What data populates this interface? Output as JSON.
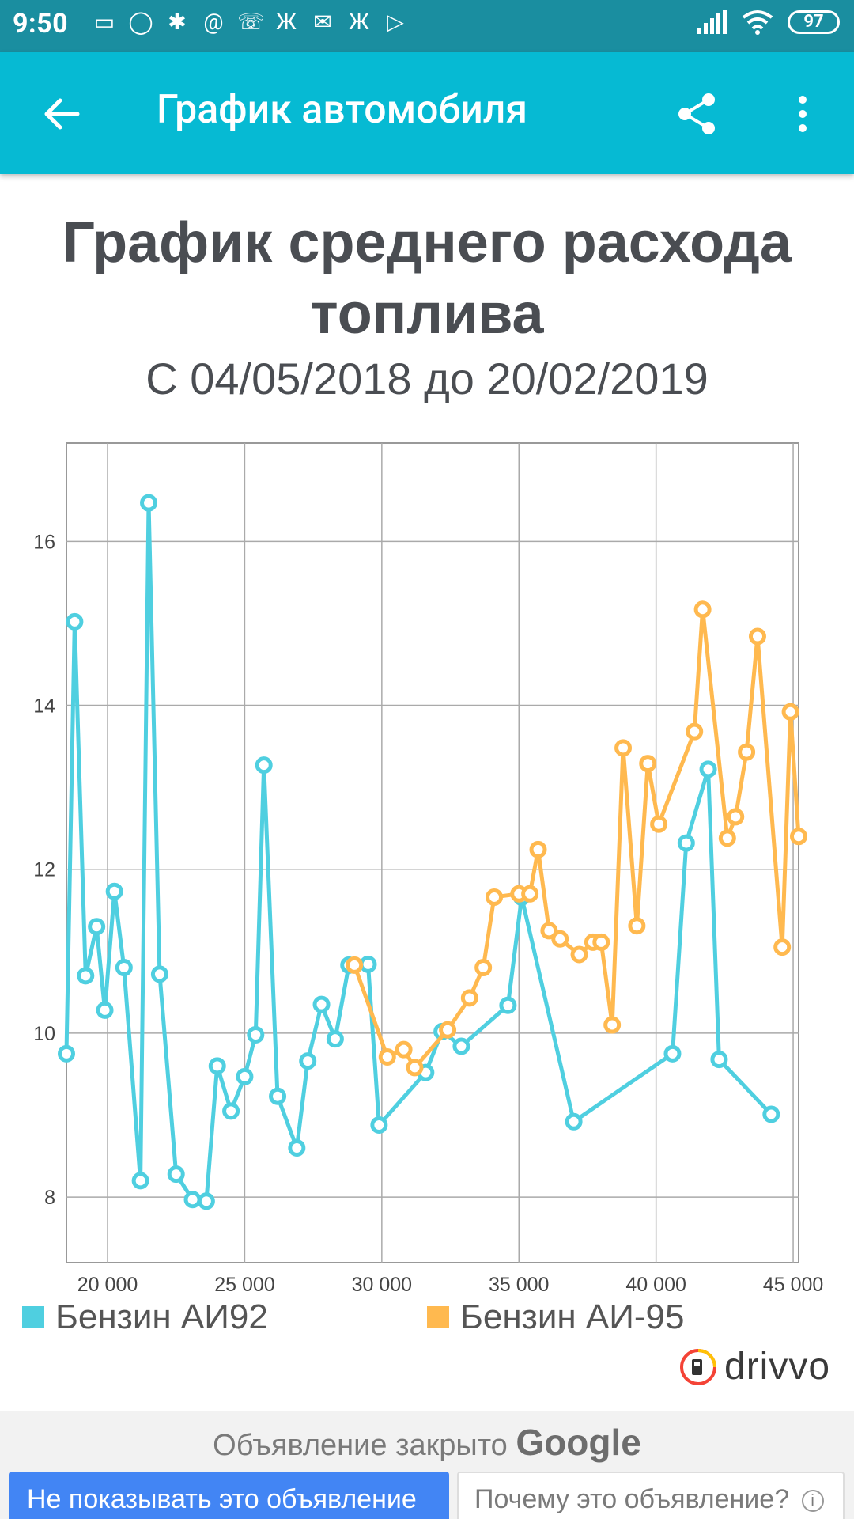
{
  "status_bar": {
    "time": "9:50",
    "battery": "97"
  },
  "app_bar": {
    "title": "График автомобиля"
  },
  "chart_data": {
    "type": "line",
    "title": "График среднего расхода топлива",
    "title_lines": [
      "График среднего расхода",
      "топлива"
    ],
    "subtitle": "С 04/05/2018 до 20/02/2019",
    "xlim": [
      18500,
      45200
    ],
    "ylim": [
      7.2,
      17.2
    ],
    "x_ticks": [
      20000,
      25000,
      30000,
      35000,
      40000,
      45000
    ],
    "x_tick_labels": [
      "20 000",
      "25 000",
      "30 000",
      "35 000",
      "40 000",
      "45 000"
    ],
    "y_ticks": [
      8,
      10,
      12,
      14,
      16
    ],
    "y_tick_labels": [
      "8",
      "10",
      "12",
      "14",
      "16"
    ],
    "grid": true,
    "legend_position": "bottom",
    "series": [
      {
        "name": "Бензин АИ92",
        "color": "#4fcfe0",
        "x": [
          18500,
          18800,
          19200,
          19600,
          19900,
          20250,
          20600,
          21200,
          21500,
          21900,
          22500,
          23100,
          23600,
          24000,
          24500,
          25000,
          25400,
          25700,
          26200,
          26900,
          27300,
          27800,
          28300,
          28800,
          29500,
          29900,
          31600,
          32200,
          32900,
          34600,
          35100,
          37000,
          40600,
          41100,
          41900,
          42300,
          44200
        ],
        "y": [
          9.75,
          15.02,
          10.7,
          11.3,
          10.28,
          11.73,
          10.8,
          8.2,
          16.47,
          10.72,
          8.28,
          7.97,
          7.95,
          9.6,
          9.05,
          9.47,
          9.98,
          13.27,
          9.23,
          8.6,
          9.66,
          10.35,
          9.93,
          10.83,
          10.84,
          8.88,
          9.52,
          10.02,
          9.84,
          10.34,
          11.66,
          8.92,
          9.75,
          12.32,
          13.22,
          9.68,
          9.01
        ]
      },
      {
        "name": "Бензин АИ-95",
        "color": "#ffb94f",
        "x": [
          29000,
          30200,
          30800,
          31200,
          32400,
          33200,
          33700,
          34100,
          35000,
          35400,
          35700,
          36100,
          36500,
          37200,
          37700,
          38000,
          38400,
          38800,
          39300,
          39700,
          40100,
          41400,
          41700,
          42600,
          42900,
          43300,
          43700,
          44600,
          44900,
          45200
        ],
        "y": [
          10.83,
          9.71,
          9.8,
          9.58,
          10.04,
          10.43,
          10.8,
          11.66,
          11.7,
          11.7,
          12.24,
          11.25,
          11.15,
          10.96,
          11.11,
          11.11,
          10.1,
          13.48,
          11.31,
          13.29,
          12.55,
          13.68,
          15.17,
          12.38,
          12.64,
          13.43,
          14.84,
          11.05,
          13.92,
          12.4
        ]
      }
    ]
  },
  "branding": {
    "logo_text": "drivvo"
  },
  "ad": {
    "closed_text": "Объявление закрыто",
    "google": "Google",
    "hide_button": "Не показывать это объявление",
    "why_button": "Почему это объявление?"
  }
}
